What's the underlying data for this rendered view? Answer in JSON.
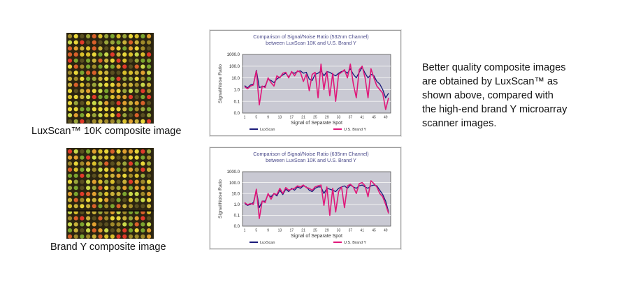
{
  "left_captions": {
    "top": "LuxScan™ 10K composite image",
    "bottom": "Brand Y composite image"
  },
  "side_text": [
    "Better quality composite images",
    "are obtained by LuxScan™ as",
    "shown above, compared with",
    "the high-end brand Y microarray",
    "scanner images."
  ],
  "colors": {
    "luxscan": "#1a1a7a",
    "brand_y": "#e0187a",
    "plot_bg": "#c9c9d3",
    "title_text": "#4a4a8a"
  },
  "chart_data": [
    {
      "type": "line",
      "title": "Comparison of Signal/Noise Ratio (532nm Channel)",
      "subtitle": "between LuxScan 10K and U.S. Brand Y",
      "xlabel": "Signal of Separate Spot",
      "ylabel": "Signal/Noise Ratio",
      "yscale": "log",
      "ylim": [
        0.0,
        1000.0
      ],
      "yticks": [
        "0.0",
        "0.1",
        "1.0",
        "10.0",
        "100.0",
        "1000.0"
      ],
      "xticks": [
        "1",
        "5",
        "9",
        "13",
        "17",
        "21",
        "25",
        "29",
        "33",
        "37",
        "41",
        "45",
        "49"
      ],
      "xlim": [
        1,
        50
      ],
      "legend": [
        "LuxScan",
        "U.S. Brand Y"
      ],
      "legend_position": "bottom",
      "grid": true,
      "x": [
        1,
        2,
        3,
        4,
        5,
        6,
        7,
        8,
        9,
        10,
        11,
        12,
        13,
        14,
        15,
        16,
        17,
        18,
        19,
        20,
        21,
        22,
        23,
        24,
        25,
        26,
        27,
        28,
        29,
        30,
        31,
        32,
        33,
        34,
        35,
        36,
        37,
        38,
        39,
        40,
        41,
        42,
        43,
        44,
        45,
        46,
        47,
        48,
        49,
        50
      ],
      "series": [
        {
          "name": "LuxScan",
          "values": [
            2.2,
            1.4,
            2.5,
            3.0,
            45,
            1.5,
            1.8,
            2.0,
            8,
            6,
            4,
            8,
            12,
            18,
            25,
            12,
            30,
            25,
            35,
            40,
            25,
            30,
            8,
            6,
            20,
            25,
            40,
            15,
            35,
            30,
            20,
            15,
            25,
            35,
            40,
            25,
            60,
            20,
            10,
            30,
            80,
            25,
            10,
            20,
            15,
            5,
            3,
            1,
            0.2,
            0.5
          ]
        },
        {
          "name": "U.S. Brand Y",
          "values": [
            1.8,
            1.2,
            2.0,
            2.5,
            40,
            0.05,
            2.0,
            1.5,
            10,
            4,
            2,
            15,
            10,
            25,
            30,
            10,
            35,
            15,
            40,
            30,
            5,
            20,
            0.8,
            20,
            30,
            0.2,
            150,
            1,
            35,
            0.3,
            25,
            0.1,
            20,
            30,
            50,
            10,
            150,
            3,
            0.2,
            50,
            100,
            10,
            0.2,
            60,
            10,
            2,
            1,
            0.5,
            0.02,
            0.2
          ]
        }
      ]
    },
    {
      "type": "line",
      "title": "Comparison of Signal/Noise Ratio (635nm Channel)",
      "subtitle": "between LuxScan 10K and U.S. Brand Y",
      "xlabel": "Signal of Separate Spot",
      "ylabel": "Signal/Noise Ratio",
      "yscale": "log",
      "ylim": [
        0.0,
        1000.0
      ],
      "yticks": [
        "0.0",
        "0.1",
        "1.0",
        "10.0",
        "100.0",
        "1000.0"
      ],
      "xticks": [
        "1",
        "5",
        "9",
        "13",
        "17",
        "21",
        "25",
        "29",
        "33",
        "37",
        "41",
        "45",
        "49"
      ],
      "xlim": [
        1,
        50
      ],
      "legend": [
        "LuxScan",
        "U.S. Brand Y"
      ],
      "legend_position": "bottom",
      "grid": true,
      "x": [
        1,
        2,
        3,
        4,
        5,
        6,
        7,
        8,
        9,
        10,
        11,
        12,
        13,
        14,
        15,
        16,
        17,
        18,
        19,
        20,
        21,
        22,
        23,
        24,
        25,
        26,
        27,
        28,
        29,
        30,
        31,
        32,
        33,
        34,
        35,
        36,
        37,
        38,
        39,
        40,
        41,
        42,
        43,
        44,
        45,
        46,
        47,
        48,
        49,
        50
      ],
      "series": [
        {
          "name": "LuxScan",
          "values": [
            1.2,
            0.8,
            1.0,
            1.5,
            20,
            0.5,
            2.0,
            2.0,
            8,
            5,
            10,
            6,
            20,
            8,
            25,
            15,
            30,
            20,
            40,
            30,
            50,
            40,
            20,
            15,
            30,
            40,
            40,
            10,
            30,
            25,
            20,
            15,
            30,
            40,
            50,
            30,
            60,
            40,
            30,
            50,
            60,
            40,
            30,
            50,
            60,
            50,
            20,
            8,
            2,
            0.2
          ]
        },
        {
          "name": "U.S. Brand Y",
          "values": [
            1.5,
            0.9,
            1.2,
            1.0,
            25,
            0.05,
            2.0,
            1.5,
            10,
            3,
            10,
            8,
            30,
            10,
            35,
            20,
            25,
            30,
            50,
            40,
            60,
            35,
            30,
            20,
            40,
            50,
            60,
            0.8,
            40,
            0.1,
            30,
            0.2,
            15,
            40,
            0.5,
            50,
            70,
            40,
            10,
            80,
            100,
            50,
            5,
            150,
            80,
            40,
            10,
            5,
            1,
            0.15
          ]
        }
      ]
    }
  ]
}
